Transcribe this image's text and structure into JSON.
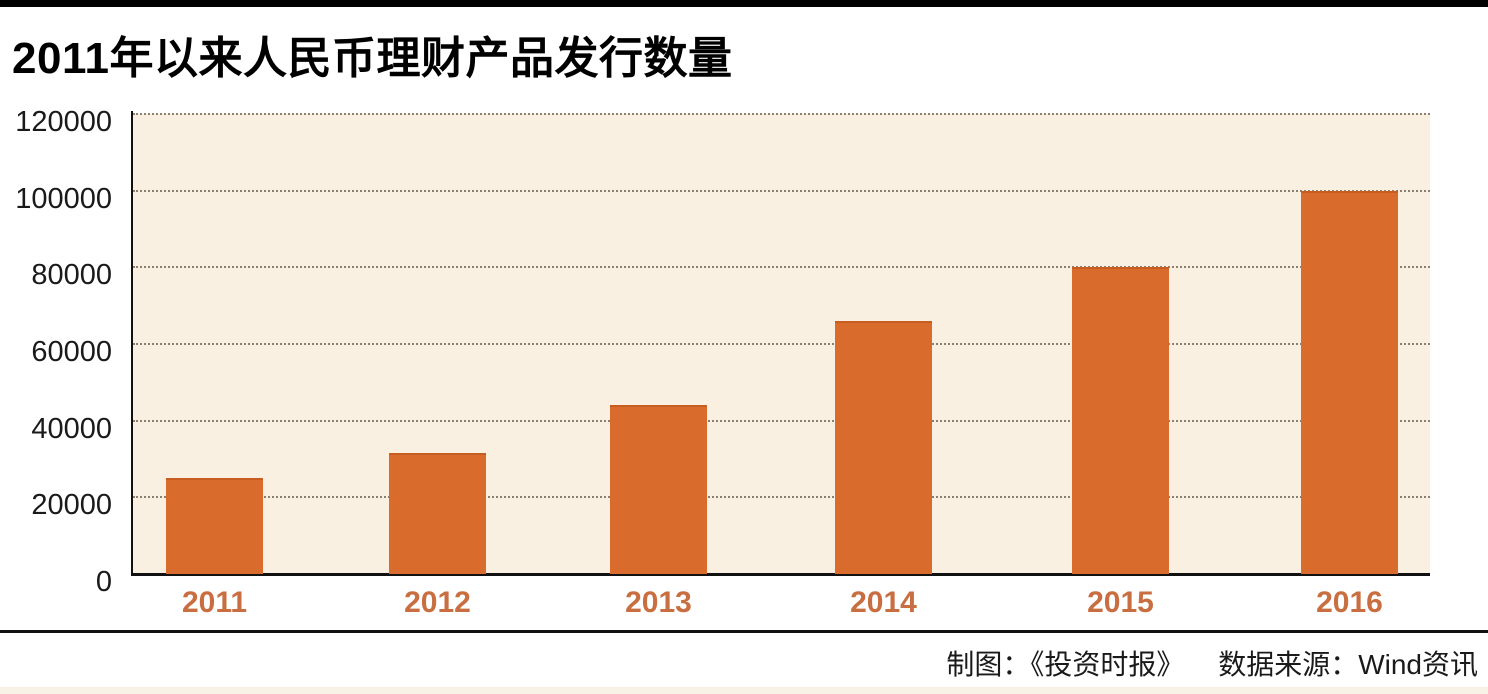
{
  "page": {
    "title": "2011年以来人民币理财产品发行数量"
  },
  "footer": {
    "credit": "制图：《投资时报》",
    "source": "数据来源：Wind资讯"
  },
  "chart_data": {
    "type": "bar",
    "title": "2011年以来人民币理财产品发行数量",
    "categories": [
      "2011",
      "2012",
      "2013",
      "2014",
      "2015",
      "2016"
    ],
    "values": [
      25000,
      31500,
      44000,
      66000,
      80000,
      100000
    ],
    "xlabel": "",
    "ylabel": "",
    "ylim": [
      0,
      120000
    ],
    "yticks": [
      0,
      20000,
      40000,
      60000,
      80000,
      100000,
      120000
    ],
    "ytick_labels": [
      "0",
      "20000",
      "40000",
      "60000",
      "80000",
      "100000",
      "120000"
    ],
    "grid": "horizontal-dotted",
    "legend": "none",
    "colors": {
      "bar": "#d96c2d",
      "bar_top_edge": "#c75d20",
      "plot_background": "#faf0e2",
      "gridline": "#8d7f70",
      "axis_line": "#111111",
      "x_tick_label": "#c96e41",
      "y_tick_label": "#1a1a1a",
      "top_rule": "#000000",
      "bottom_strip": "#f8f2e6"
    }
  }
}
